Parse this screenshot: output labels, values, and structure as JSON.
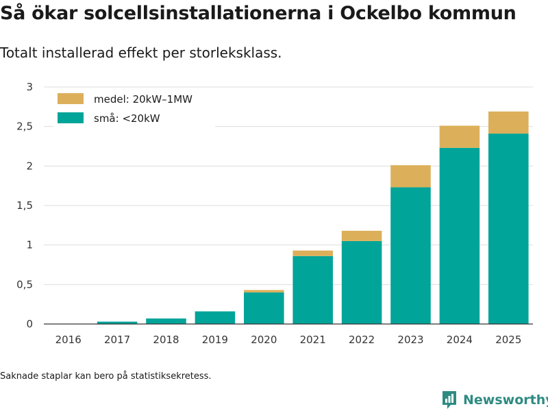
{
  "header": {
    "title": "Så ökar solcellsinstallationerna i Ockelbo kommun",
    "subtitle": "Totalt installerad effekt per storleksklass."
  },
  "footer": {
    "note": "Saknade staplar kan bero på statistiksekretess.",
    "brand": "Newsworthy",
    "brand_icon": "bar-chart-logo-icon"
  },
  "colors": {
    "small": "#00a499",
    "medium": "#dcaf5a",
    "grid": "#dddddd",
    "axis": "#333333",
    "brand": "#2e8b82"
  },
  "chart_data": {
    "type": "bar",
    "stacked": true,
    "title": "Så ökar solcellsinstallationerna i Ockelbo kommun",
    "subtitle": "Totalt installerad effekt per storleksklass.",
    "xlabel": "",
    "ylabel": "",
    "ylim": [
      0,
      3
    ],
    "yticks": [
      0,
      0.5,
      1,
      1.5,
      2,
      2.5,
      3
    ],
    "ytick_labels": [
      "0",
      "0,5",
      "1",
      "1,5",
      "2",
      "2,5",
      "3"
    ],
    "grid": true,
    "legend_position": "top-left",
    "categories": [
      "2016",
      "2017",
      "2018",
      "2019",
      "2020",
      "2021",
      "2022",
      "2023",
      "2024",
      "2025"
    ],
    "series": [
      {
        "name": "små: <20kW",
        "color": "#00a499",
        "values": [
          0,
          0.03,
          0.07,
          0.16,
          0.4,
          0.86,
          1.05,
          1.73,
          2.23,
          2.41
        ]
      },
      {
        "name": "medel: 20kW–1MW",
        "color": "#dcaf5a",
        "values": [
          0,
          0,
          0,
          0,
          0.03,
          0.07,
          0.13,
          0.28,
          0.28,
          0.28
        ]
      }
    ]
  }
}
